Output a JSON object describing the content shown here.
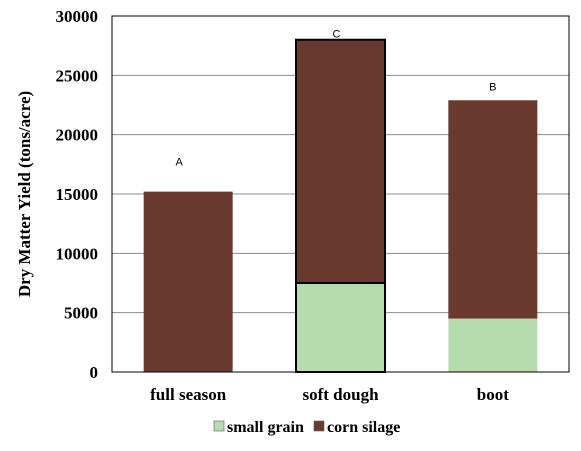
{
  "chart_data": {
    "type": "bar",
    "stacked": true,
    "categories": [
      "full season",
      "soft dough",
      "boot"
    ],
    "series": [
      {
        "name": "small grain",
        "values": [
          0,
          7500,
          4500
        ],
        "color": "#b6dcae"
      },
      {
        "name": "corn silage",
        "values": [
          15200,
          20500,
          18400
        ],
        "color": "#6b3a2e"
      }
    ],
    "annotations": [
      "A",
      "C",
      "B"
    ],
    "ylabel": "Dry Matter Yield (tons/acre)",
    "xlabel": "",
    "ylim": [
      0,
      30000
    ],
    "yticks": [
      0,
      5000,
      10000,
      15000,
      20000,
      25000,
      30000
    ],
    "grid": true,
    "legend_position": "bottom"
  }
}
